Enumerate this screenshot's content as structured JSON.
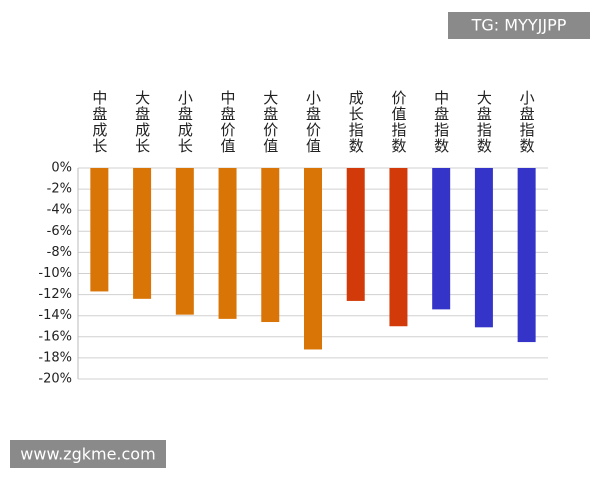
{
  "chart_data": {
    "type": "bar",
    "categories": [
      "中盘成长",
      "大盘成长",
      "小盘成长",
      "中盘价值",
      "大盘价值",
      "小盘价值",
      "成长指数",
      "价值指数",
      "中盘指数",
      "大盘指数",
      "小盘指数"
    ],
    "values": [
      -11.7,
      -12.4,
      -13.9,
      -14.3,
      -14.6,
      -17.2,
      -12.6,
      -15.0,
      -13.4,
      -15.1,
      -16.5
    ],
    "colors": [
      "#d97406",
      "#d97406",
      "#d97406",
      "#d97406",
      "#d97406",
      "#d97406",
      "#d23a0a",
      "#d23a0a",
      "#3434c8",
      "#3434c8",
      "#3434c8"
    ],
    "ylim": [
      -20,
      0
    ],
    "yticks": [
      {
        "value": 0,
        "label": "0%"
      },
      {
        "value": -2,
        "label": "-2%"
      },
      {
        "value": -4,
        "label": "-4%"
      },
      {
        "value": -6,
        "label": "-6%"
      },
      {
        "value": -8,
        "label": "-8%"
      },
      {
        "value": -10,
        "label": "-10%"
      },
      {
        "value": -12,
        "label": "-12%"
      },
      {
        "value": -14,
        "label": "-14%"
      },
      {
        "value": -16,
        "label": "-16%"
      },
      {
        "value": -18,
        "label": "-18%"
      },
      {
        "value": -20,
        "label": "-20%"
      }
    ],
    "grid": true,
    "annotations": [
      "TG: MYYJJPP",
      "www.zgkme.com"
    ]
  }
}
